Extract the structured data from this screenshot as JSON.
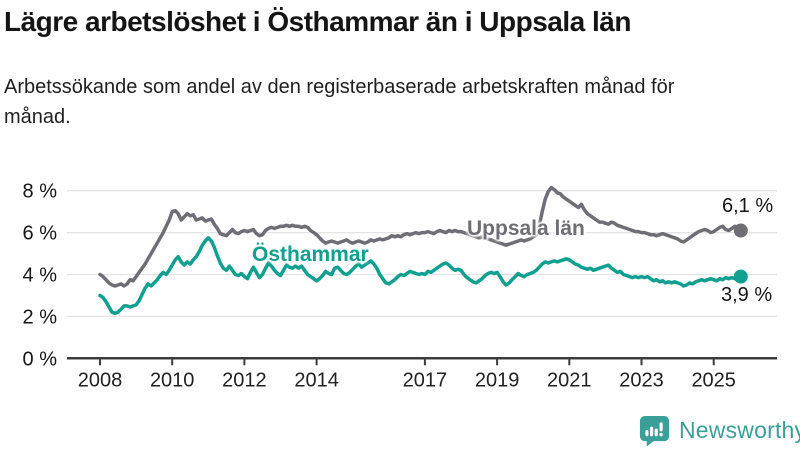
{
  "header": {
    "title": "Lägre arbetslöshet i Östhammar än i Uppsala län",
    "subtitle": "Arbetssökande som andel av den registerbaserade arbetskraften månad för månad."
  },
  "chart_data": {
    "type": "line",
    "title": "Lägre arbetslöshet i Östhammar än i Uppsala län",
    "subtitle": "Arbetssökande som andel av den registerbaserade arbetskraften månad för månad.",
    "unit": "%",
    "frequency": "monthly",
    "x_start": "2008-01",
    "x_end": "2025-10",
    "ylim": [
      0,
      8.6
    ],
    "yticks": [
      0,
      2,
      4,
      6,
      8
    ],
    "ytick_labels": [
      "0 %",
      "2 %",
      "4 %",
      "6 %",
      "8 %"
    ],
    "xticks": [
      2008,
      2010,
      2012,
      2014,
      2017,
      2019,
      2021,
      2023,
      2025
    ],
    "grid": "horizontal",
    "legend": "inline-labels",
    "series": [
      {
        "name": "Uppsala län",
        "color": "#6e6e74",
        "end_label": "6,1 %",
        "end_value": 6.1,
        "values": [
          4.0,
          3.9,
          3.75,
          3.6,
          3.5,
          3.45,
          3.5,
          3.55,
          3.45,
          3.55,
          3.75,
          3.7,
          3.9,
          4.1,
          4.3,
          4.5,
          4.75,
          5.0,
          5.25,
          5.5,
          5.75,
          6.0,
          6.3,
          6.6,
          7.0,
          7.05,
          6.9,
          6.6,
          6.75,
          6.9,
          6.8,
          6.85,
          6.6,
          6.65,
          6.7,
          6.55,
          6.6,
          6.65,
          6.4,
          6.2,
          5.95,
          5.9,
          5.85,
          6.0,
          6.15,
          6.0,
          5.95,
          6.05,
          6.1,
          6.05,
          6.1,
          6.15,
          5.95,
          5.85,
          5.9,
          6.1,
          6.2,
          6.25,
          6.2,
          6.25,
          6.3,
          6.3,
          6.35,
          6.3,
          6.35,
          6.3,
          6.3,
          6.25,
          6.3,
          6.25,
          6.1,
          6.0,
          5.9,
          5.75,
          5.6,
          5.5,
          5.55,
          5.6,
          5.55,
          5.5,
          5.55,
          5.6,
          5.65,
          5.55,
          5.5,
          5.55,
          5.6,
          5.55,
          5.5,
          5.55,
          5.65,
          5.6,
          5.65,
          5.7,
          5.65,
          5.7,
          5.75,
          5.85,
          5.8,
          5.85,
          5.8,
          5.9,
          5.95,
          5.9,
          5.95,
          6.0,
          5.95,
          6.0,
          6.0,
          6.05,
          6.0,
          5.95,
          6.05,
          6.1,
          6.05,
          6.0,
          6.1,
          6.05,
          6.1,
          6.05,
          6.05,
          6.0,
          5.95,
          5.9,
          5.85,
          5.8,
          5.75,
          5.8,
          5.75,
          5.7,
          5.65,
          5.6,
          5.55,
          5.5,
          5.45,
          5.4,
          5.45,
          5.5,
          5.55,
          5.6,
          5.65,
          5.6,
          5.65,
          5.7,
          5.8,
          5.9,
          6.3,
          7.0,
          7.6,
          7.95,
          8.15,
          8.05,
          7.9,
          7.85,
          7.7,
          7.6,
          7.5,
          7.4,
          7.3,
          7.2,
          7.35,
          7.1,
          6.9,
          6.8,
          6.7,
          6.6,
          6.5,
          6.5,
          6.45,
          6.4,
          6.5,
          6.45,
          6.35,
          6.3,
          6.25,
          6.2,
          6.15,
          6.1,
          6.05,
          6.05,
          6.0,
          6.0,
          5.95,
          5.9,
          5.9,
          5.85,
          5.9,
          5.95,
          5.9,
          5.85,
          5.8,
          5.75,
          5.7,
          5.6,
          5.55,
          5.65,
          5.75,
          5.85,
          5.95,
          6.05,
          6.1,
          6.15,
          6.1,
          6.0,
          6.05,
          6.15,
          6.25,
          6.3,
          6.15,
          6.1,
          6.2,
          6.3,
          6.2,
          6.1
        ]
      },
      {
        "name": "Östhammar",
        "color": "#10a090",
        "end_label": "3,9 %",
        "end_value": 3.9,
        "values": [
          3.0,
          2.9,
          2.7,
          2.45,
          2.2,
          2.15,
          2.2,
          2.35,
          2.5,
          2.5,
          2.45,
          2.5,
          2.55,
          2.75,
          3.05,
          3.35,
          3.55,
          3.45,
          3.6,
          3.75,
          3.95,
          4.1,
          4.0,
          4.2,
          4.45,
          4.7,
          4.85,
          4.6,
          4.45,
          4.6,
          4.5,
          4.7,
          4.85,
          5.1,
          5.4,
          5.6,
          5.75,
          5.6,
          5.3,
          4.9,
          4.55,
          4.3,
          4.2,
          4.4,
          4.2,
          4.0,
          3.95,
          4.05,
          3.9,
          3.8,
          4.1,
          4.35,
          4.1,
          3.85,
          4.0,
          4.3,
          4.55,
          4.4,
          4.2,
          4.05,
          3.95,
          4.2,
          4.45,
          4.35,
          4.3,
          4.4,
          4.3,
          4.4,
          4.2,
          4.0,
          3.9,
          3.8,
          3.7,
          3.8,
          3.95,
          4.15,
          4.05,
          4.0,
          4.3,
          4.35,
          4.2,
          4.05,
          4.0,
          4.1,
          4.25,
          4.4,
          4.5,
          4.35,
          4.45,
          4.55,
          4.65,
          4.5,
          4.3,
          4.0,
          3.8,
          3.6,
          3.55,
          3.65,
          3.75,
          3.9,
          4.0,
          3.95,
          4.05,
          4.15,
          4.1,
          4.05,
          4.0,
          4.05,
          4.0,
          4.15,
          4.1,
          4.2,
          4.3,
          4.4,
          4.5,
          4.55,
          4.45,
          4.3,
          4.2,
          4.25,
          4.2,
          4.0,
          3.85,
          3.75,
          3.65,
          3.6,
          3.7,
          3.8,
          3.95,
          4.05,
          4.1,
          4.05,
          4.1,
          3.9,
          3.65,
          3.5,
          3.6,
          3.75,
          3.9,
          4.05,
          3.95,
          3.9,
          4.0,
          4.05,
          4.1,
          4.2,
          4.35,
          4.5,
          4.6,
          4.55,
          4.6,
          4.65,
          4.6,
          4.65,
          4.7,
          4.75,
          4.7,
          4.6,
          4.5,
          4.45,
          4.35,
          4.3,
          4.25,
          4.3,
          4.2,
          4.25,
          4.3,
          4.35,
          4.4,
          4.45,
          4.3,
          4.2,
          4.1,
          4.15,
          4.0,
          3.95,
          3.9,
          3.85,
          3.9,
          3.85,
          3.9,
          3.85,
          3.9,
          3.8,
          3.7,
          3.75,
          3.65,
          3.7,
          3.6,
          3.65,
          3.6,
          3.65,
          3.6,
          3.55,
          3.45,
          3.5,
          3.6,
          3.55,
          3.65,
          3.7,
          3.75,
          3.7,
          3.75,
          3.8,
          3.75,
          3.7,
          3.8,
          3.75,
          3.85,
          3.8,
          3.85,
          3.8,
          3.85,
          3.9
        ]
      }
    ]
  },
  "branding": {
    "name": "Newsworthy",
    "color": "#3a9f99",
    "icon": "newsworthy-bar-chart-speech-bubble"
  }
}
